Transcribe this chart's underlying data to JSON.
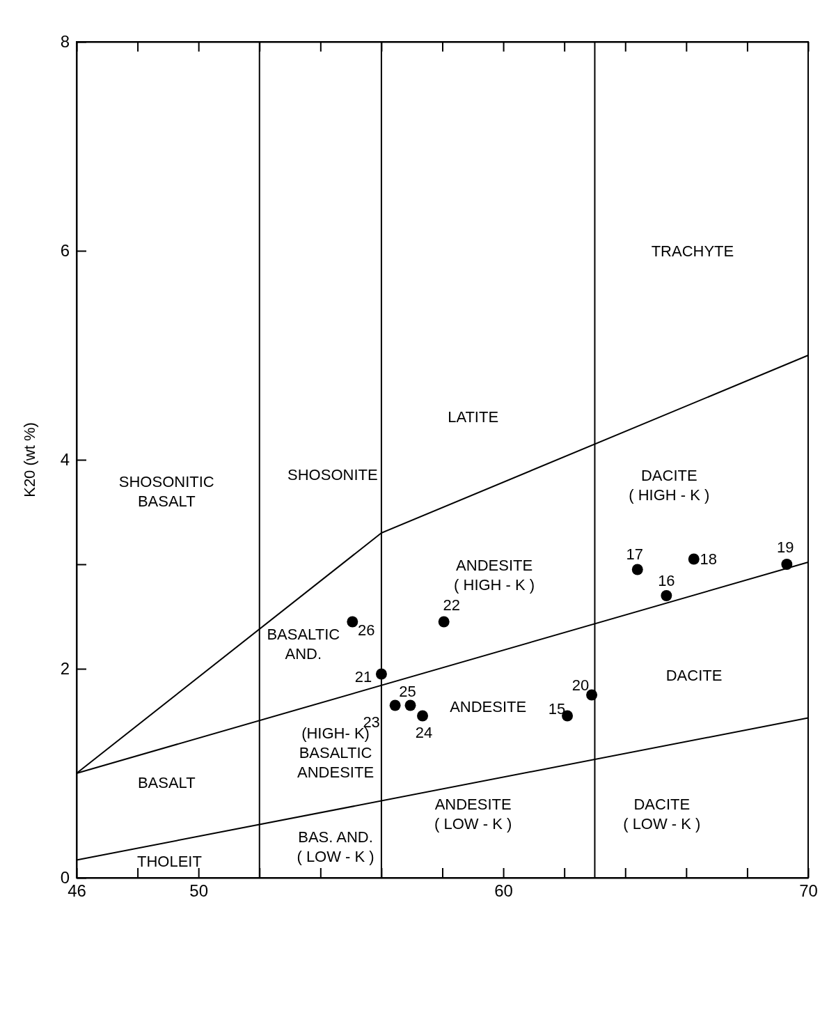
{
  "chart_data": {
    "type": "scatter",
    "ylabel": "K20 (wt %)",
    "xlim": [
      46,
      70
    ],
    "ylim": [
      0,
      8
    ],
    "xticks": [
      46,
      {
        "value": 48,
        "label": null
      },
      50,
      {
        "value": 52,
        "label": null
      },
      {
        "value": 54,
        "label": null
      },
      {
        "value": 56,
        "label": null
      },
      {
        "value": 58,
        "label": null
      },
      60,
      {
        "value": 62,
        "label": null
      },
      {
        "value": 64,
        "label": null
      },
      {
        "value": 66,
        "label": null
      },
      {
        "value": 68,
        "label": null
      },
      70
    ],
    "yticks": [
      0,
      2,
      {
        "value": 3,
        "label": null
      },
      4,
      6,
      8
    ],
    "marker": "circle",
    "series": [
      {
        "type": "line",
        "x": [
          46,
          70
        ],
        "values": [
          0.17,
          1.53
        ],
        "color": "#000000",
        "marker": "none"
      },
      {
        "type": "line",
        "x": [
          46,
          70
        ],
        "values": [
          1.0,
          3.02
        ],
        "color": "#000000",
        "marker": "none"
      },
      {
        "type": "line",
        "x": [
          46,
          56,
          70
        ],
        "values": [
          1.0,
          3.3,
          5.0
        ],
        "color": "#000000",
        "marker": "none"
      },
      {
        "x": [
          69.3,
          66.25,
          65.35,
          64.4,
          62.9,
          62.1,
          58.05,
          57.35,
          56.95,
          56.45,
          56.0,
          55.05
        ],
        "values": [
          3.0,
          3.05,
          2.7,
          2.95,
          1.75,
          1.55,
          2.45,
          1.55,
          1.65,
          1.65,
          1.95,
          2.45
        ],
        "color": "#000000"
      }
    ],
    "ref_lines": [
      {
        "axis": "x",
        "value": 52,
        "color": "#000000"
      },
      {
        "axis": "x",
        "value": 56,
        "color": "#000000"
      },
      {
        "axis": "x",
        "value": 63,
        "color": "#000000"
      }
    ],
    "annotations": [
      "TRACHYTE",
      "DACITE\n( HIGH - K )",
      "DACITE",
      "DACITE\n( LOW - K )",
      "LATITE",
      "ANDESITE\n( HIGH - K )",
      "ANDESITE",
      "ANDESITE\n( LOW - K )",
      "SHOSONITE",
      "BASALTIC\nAND.",
      "(HIGH- K)\nBASALTIC\nANDESITE",
      "BAS. AND.\n( LOW - K )",
      "SHOSONITIC\nBASALT",
      "BASALT",
      "THOLEIT",
      {
        "text": "19",
        "x": 69.3,
        "y": 3.0
      },
      {
        "text": "18",
        "x": 66.25,
        "y": 3.05
      },
      {
        "text": "16",
        "x": 65.35,
        "y": 2.7
      },
      {
        "text": "17",
        "x": 64.4,
        "y": 2.95
      },
      {
        "text": "20",
        "x": 62.9,
        "y": 1.75
      },
      {
        "text": "15",
        "x": 62.1,
        "y": 1.55
      },
      {
        "text": "22",
        "x": 58.05,
        "y": 2.45
      },
      {
        "text": "24",
        "x": 57.35,
        "y": 1.55
      },
      {
        "text": "25",
        "x": 56.95,
        "y": 1.65
      },
      {
        "text": "23",
        "x": 56.45,
        "y": 1.65
      },
      {
        "text": "21",
        "x": 56.0,
        "y": 1.95
      },
      {
        "text": "26",
        "x": 55.05,
        "y": 2.45
      }
    ]
  }
}
